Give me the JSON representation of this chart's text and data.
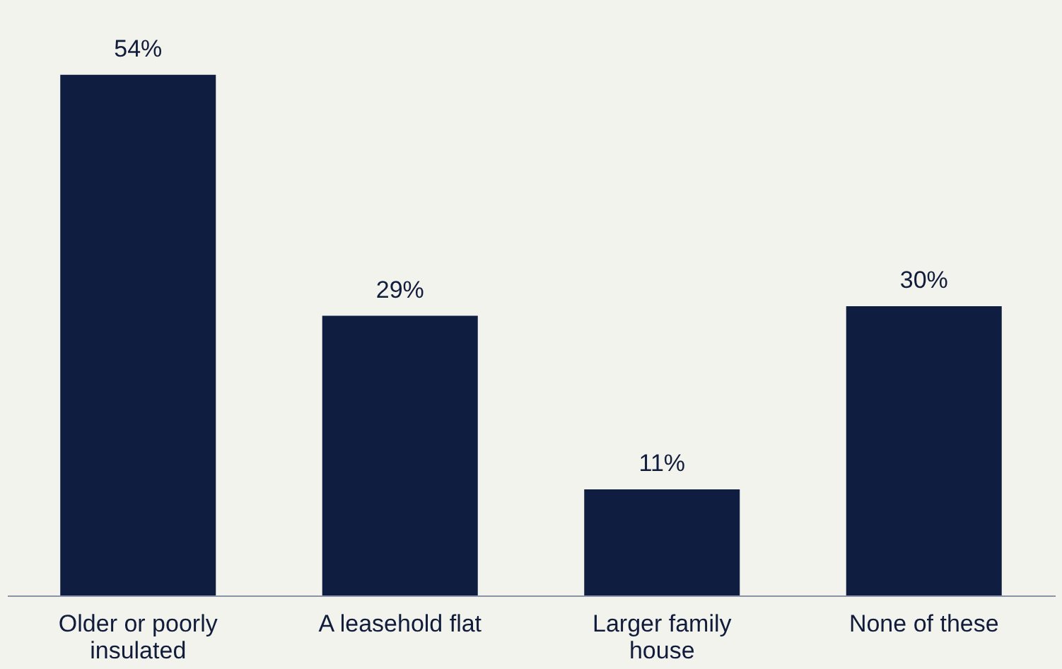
{
  "chart_data": {
    "type": "bar",
    "categories": [
      "Older or poorly insulated",
      "A leasehold flat",
      "Larger family house",
      "None of these"
    ],
    "values": [
      54,
      29,
      11,
      30
    ],
    "value_labels": [
      "54%",
      "29%",
      "11%",
      "30%"
    ],
    "color": "#0f1e40",
    "grid": false
  }
}
